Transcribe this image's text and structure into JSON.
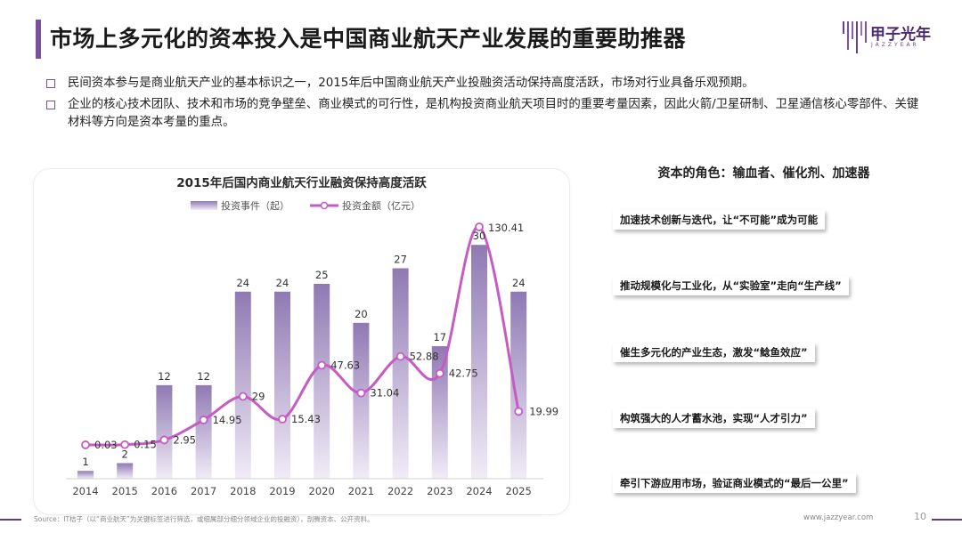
{
  "header": {
    "title": "市场上多元化的资本投入是中国商业航天产业发展的重要助推器",
    "logo_name": "甲子光年",
    "logo_sub": "JAZZYEAR"
  },
  "bullets": [
    "民间资本参与是商业航天产业的基本标识之一，2015年后中国商业航天产业投融资活动保持高度活跃，市场对行业具备乐观预期。",
    "企业的核心技术团队、技术和市场的竞争壁垒、商业模式的可行性，是机构投资商业航天项目时的重要考量因素，因此火箭/卫星研制、卫星通信核心零部件、关键材料等方向是资本考量的重点。"
  ],
  "chart_data": {
    "type": "bar",
    "title": "2015年后国内商业航天行业融资保持高度活跃",
    "categories": [
      "2014",
      "2015",
      "2016",
      "2017",
      "2018",
      "2019",
      "2020",
      "2021",
      "2022",
      "2023",
      "2024",
      "2025"
    ],
    "series": [
      {
        "name": "投资事件（起）",
        "type": "bar",
        "values": [
          1,
          2,
          12,
          12,
          24,
          24,
          25,
          20,
          27,
          17,
          30,
          24
        ]
      },
      {
        "name": "投资金额（亿元）",
        "type": "line",
        "values": [
          0.03,
          0.15,
          2.95,
          14.95,
          29,
          15.43,
          47.63,
          31.04,
          52.88,
          42.75,
          130.41,
          19.99
        ]
      }
    ],
    "legend": [
      "投资事件（起）",
      "投资金额（亿元）"
    ],
    "xlabel": "",
    "ylabel": "",
    "colors": {
      "bar_top": "#8f79b3",
      "bar_bottom": "#f1ecf7",
      "line": "#c65bc4"
    }
  },
  "roles": {
    "title": "资本的角色：输血者、催化剂、加速器",
    "items": [
      "加速技术创新与迭代，让“不可能”成为可能",
      "推动规模化与工业化，从“实验室”走向“生产线”",
      "催生多元化的产业生态，激发“鲶鱼效应”",
      "构筑强大的人才蓄水池，实现“人才引力”",
      "牵引下游应用市场，验证商业模式的“最后一公里”"
    ]
  },
  "footer": {
    "source": "Source：IT桔子（以“商业航天”为关键标签进行筛选，或细属部分细分领域企业的投融资），剖腾资本、公开资料。",
    "website": "www.jazzyear.com",
    "page": "10"
  },
  "theme": {
    "accent": "#7a4fa0"
  }
}
